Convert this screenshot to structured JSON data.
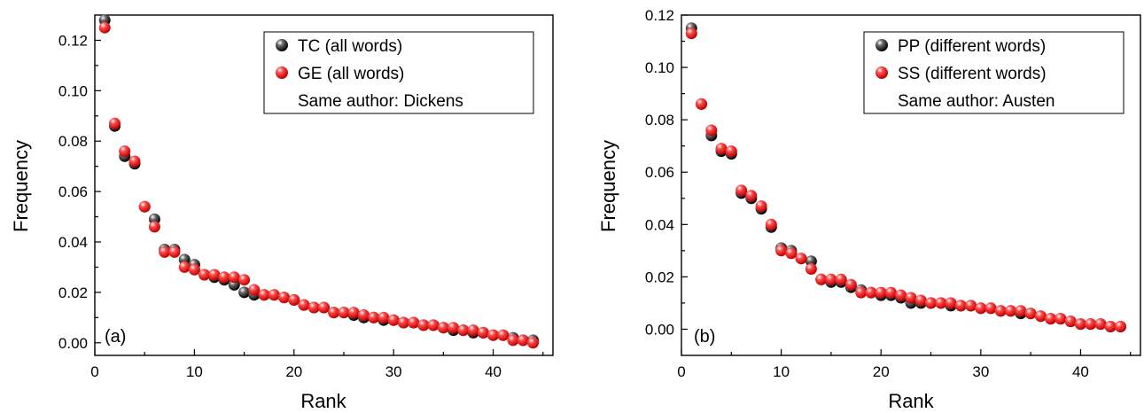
{
  "colors": {
    "series_0": "#000000",
    "series_1": "#ff1a1a"
  },
  "chart_data": [
    {
      "type": "scatter",
      "panel_label": "(a)",
      "xlabel": "Rank",
      "ylabel": "Frequency",
      "xlim": [
        0,
        46
      ],
      "ylim": [
        -0.005,
        0.13
      ],
      "xticks": [
        0,
        10,
        20,
        30,
        40
      ],
      "yticks": [
        0.0,
        0.02,
        0.04,
        0.06,
        0.08,
        0.1,
        0.12
      ],
      "ytick_labels": [
        "0.00",
        "0.02",
        "0.04",
        "0.06",
        "0.08",
        "0.10",
        "0.12"
      ],
      "legend_note": "Same author: Dickens",
      "series": [
        {
          "name": "TC (all words)",
          "x": [
            1,
            2,
            3,
            4,
            5,
            6,
            7,
            8,
            9,
            10,
            11,
            12,
            13,
            14,
            15,
            16,
            17,
            18,
            19,
            20,
            21,
            22,
            23,
            24,
            25,
            26,
            27,
            28,
            29,
            30,
            31,
            32,
            33,
            34,
            35,
            36,
            37,
            38,
            39,
            40,
            41,
            42,
            43,
            44
          ],
          "values": [
            0.128,
            0.086,
            0.074,
            0.071,
            0.054,
            0.049,
            0.037,
            0.037,
            0.033,
            0.031,
            0.027,
            0.026,
            0.025,
            0.023,
            0.02,
            0.019,
            0.019,
            0.019,
            0.018,
            0.017,
            0.015,
            0.014,
            0.014,
            0.012,
            0.012,
            0.011,
            0.01,
            0.01,
            0.009,
            0.009,
            0.008,
            0.008,
            0.007,
            0.007,
            0.006,
            0.005,
            0.005,
            0.004,
            0.004,
            0.003,
            0.003,
            0.002,
            0.001,
            0.001
          ]
        },
        {
          "name": "GE (all words)",
          "x": [
            1,
            2,
            3,
            4,
            5,
            6,
            7,
            8,
            9,
            10,
            11,
            12,
            13,
            14,
            15,
            16,
            17,
            18,
            19,
            20,
            21,
            22,
            23,
            24,
            25,
            26,
            27,
            28,
            29,
            30,
            31,
            32,
            33,
            34,
            35,
            36,
            37,
            38,
            39,
            40,
            41,
            42,
            43,
            44
          ],
          "values": [
            0.125,
            0.087,
            0.076,
            0.072,
            0.054,
            0.046,
            0.036,
            0.036,
            0.03,
            0.029,
            0.027,
            0.027,
            0.026,
            0.026,
            0.025,
            0.021,
            0.019,
            0.019,
            0.018,
            0.017,
            0.015,
            0.014,
            0.014,
            0.012,
            0.012,
            0.012,
            0.011,
            0.01,
            0.01,
            0.009,
            0.008,
            0.008,
            0.007,
            0.007,
            0.006,
            0.006,
            0.005,
            0.005,
            0.004,
            0.003,
            0.003,
            0.001,
            0.001,
            0.0
          ]
        }
      ]
    },
    {
      "type": "scatter",
      "panel_label": "(b)",
      "xlabel": "Rank",
      "ylabel": "Frequency",
      "xlim": [
        0,
        46
      ],
      "ylim": [
        -0.01,
        0.12
      ],
      "xticks": [
        0,
        10,
        20,
        30,
        40
      ],
      "yticks": [
        0.0,
        0.02,
        0.04,
        0.06,
        0.08,
        0.1,
        0.12
      ],
      "ytick_labels": [
        "0.00",
        "0.02",
        "0.04",
        "0.06",
        "0.08",
        "0.10",
        "0.12"
      ],
      "legend_note": "Same author: Austen",
      "series": [
        {
          "name": "PP (different words)",
          "x": [
            1,
            2,
            3,
            4,
            5,
            6,
            7,
            8,
            9,
            10,
            11,
            12,
            13,
            14,
            15,
            16,
            17,
            18,
            19,
            20,
            21,
            22,
            23,
            24,
            25,
            26,
            27,
            28,
            29,
            30,
            31,
            32,
            33,
            34,
            35,
            36,
            37,
            38,
            39,
            40,
            41,
            42,
            43,
            44
          ],
          "values": [
            0.115,
            0.086,
            0.074,
            0.068,
            0.067,
            0.052,
            0.05,
            0.046,
            0.039,
            0.031,
            0.03,
            0.027,
            0.026,
            0.019,
            0.018,
            0.018,
            0.016,
            0.015,
            0.014,
            0.013,
            0.013,
            0.012,
            0.01,
            0.01,
            0.01,
            0.01,
            0.009,
            0.009,
            0.009,
            0.008,
            0.008,
            0.007,
            0.007,
            0.006,
            0.006,
            0.005,
            0.004,
            0.004,
            0.003,
            0.002,
            0.002,
            0.002,
            0.001,
            0.001
          ]
        },
        {
          "name": "SS (different words)",
          "x": [
            1,
            2,
            3,
            4,
            5,
            6,
            7,
            8,
            9,
            10,
            11,
            12,
            13,
            14,
            15,
            16,
            17,
            18,
            19,
            20,
            21,
            22,
            23,
            24,
            25,
            26,
            27,
            28,
            29,
            30,
            31,
            32,
            33,
            34,
            35,
            36,
            37,
            38,
            39,
            40,
            41,
            42,
            43,
            44
          ],
          "values": [
            0.113,
            0.086,
            0.076,
            0.069,
            0.068,
            0.053,
            0.051,
            0.047,
            0.04,
            0.03,
            0.029,
            0.027,
            0.023,
            0.019,
            0.019,
            0.019,
            0.017,
            0.014,
            0.014,
            0.014,
            0.014,
            0.013,
            0.012,
            0.011,
            0.01,
            0.01,
            0.01,
            0.009,
            0.009,
            0.008,
            0.008,
            0.007,
            0.007,
            0.007,
            0.006,
            0.005,
            0.004,
            0.004,
            0.003,
            0.002,
            0.002,
            0.002,
            0.001,
            0.001
          ]
        }
      ]
    }
  ]
}
